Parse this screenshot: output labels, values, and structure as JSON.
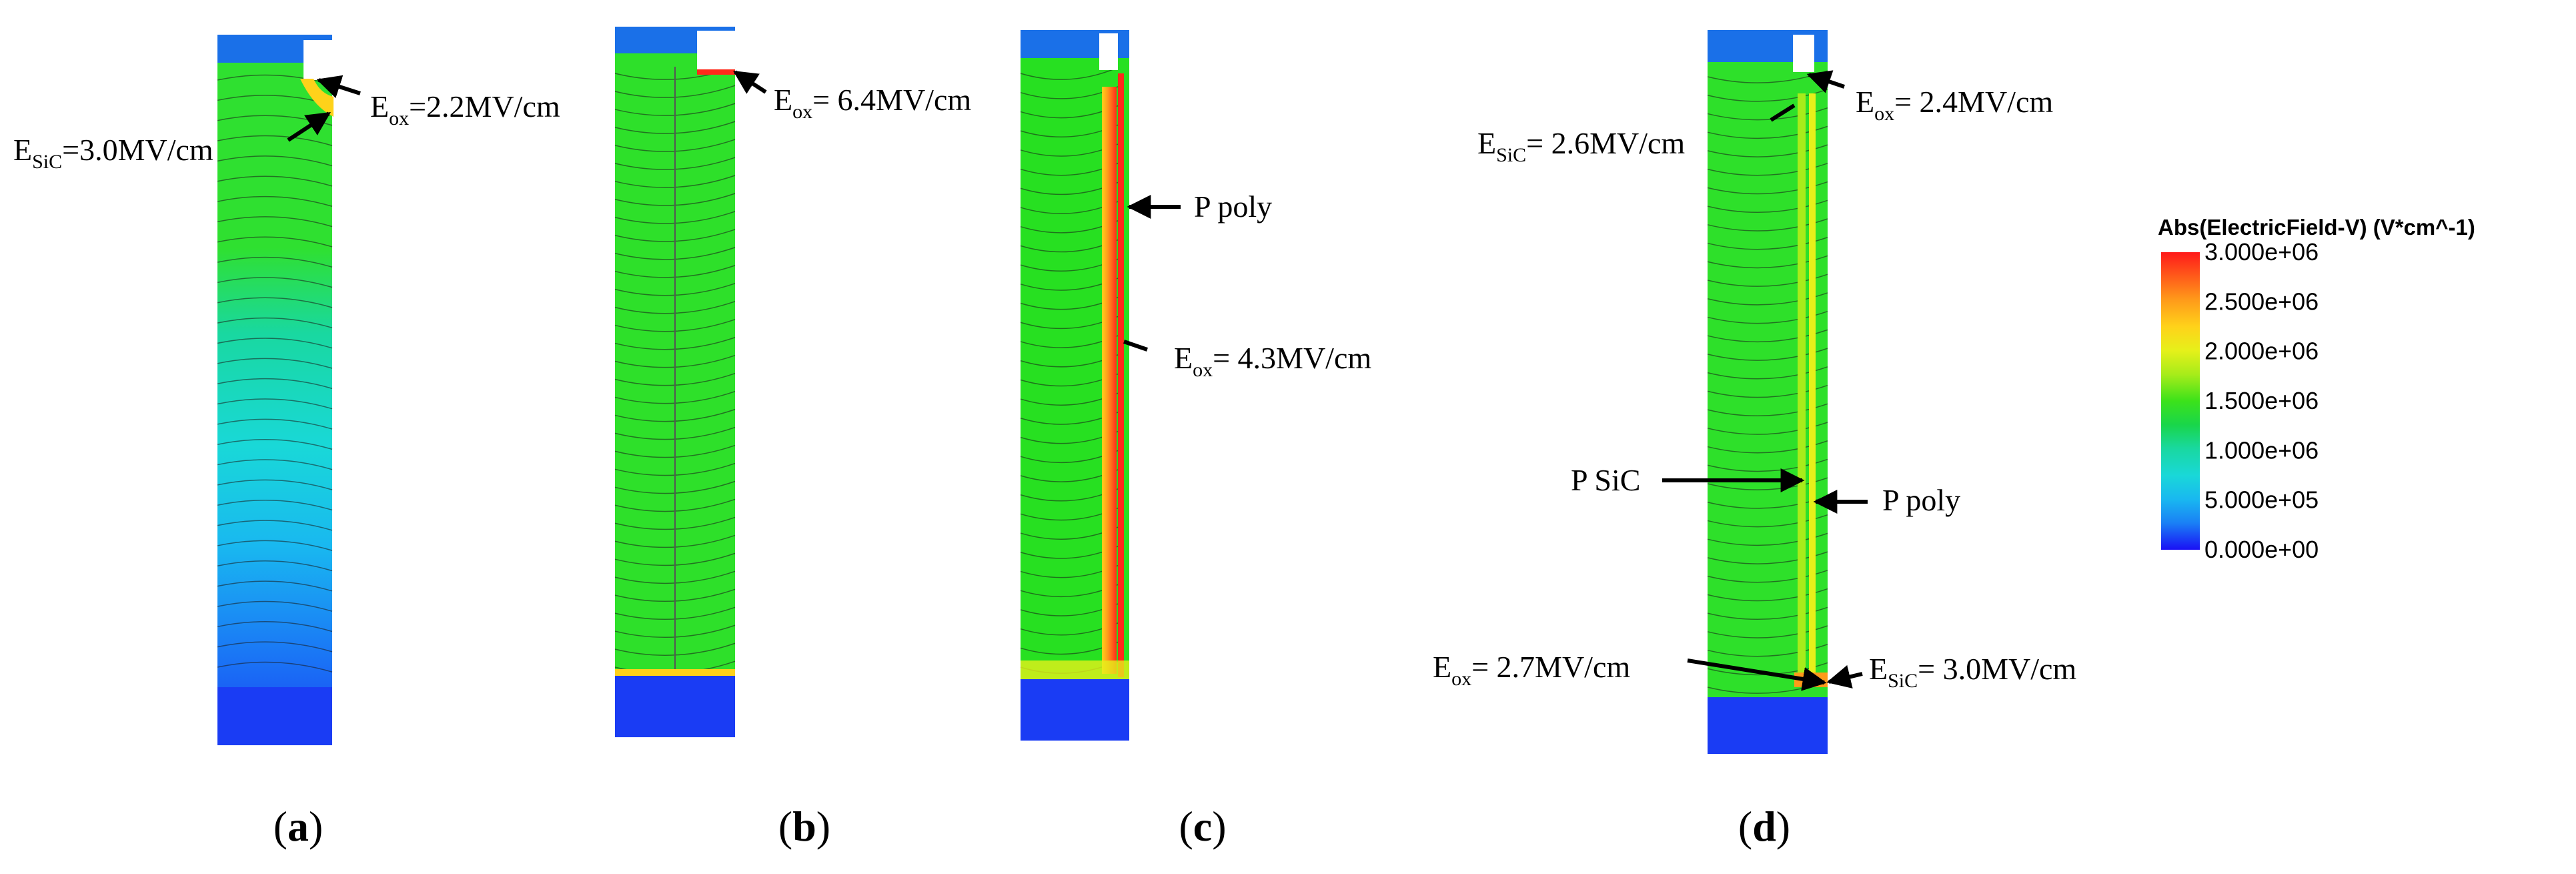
{
  "figure": {
    "panels": [
      {
        "id": "a",
        "caption_open": "(",
        "caption_letter": "a",
        "caption_close": ")",
        "device": "fully-depleted-blue-bottom"
      },
      {
        "id": "b",
        "caption_open": "(",
        "caption_letter": "b",
        "caption_close": ")",
        "device": "green-with-substrate"
      },
      {
        "id": "c",
        "caption_open": "(",
        "caption_letter": "c",
        "caption_close": ")",
        "device": "green-with-p-poly-sidewall"
      },
      {
        "id": "d",
        "caption_open": "(",
        "caption_letter": "d",
        "caption_close": ")",
        "device": "green-with-p-sic-and-p-poly"
      }
    ],
    "annotations": {
      "a_eox": {
        "main": "E",
        "sub": "ox",
        "rest": "=2.2MV/cm"
      },
      "a_esic": {
        "main": "E",
        "sub": "SiC",
        "rest": "=3.0MV/cm"
      },
      "b_eox": {
        "main": "E",
        "sub": "ox",
        "rest": "= 6.4MV/cm"
      },
      "c_ppoly": "P poly",
      "c_eox": {
        "main": "E",
        "sub": "ox",
        "rest": "= 4.3MV/cm"
      },
      "d_esic_top": {
        "main": "E",
        "sub": "SiC",
        "rest": "= 2.6MV/cm"
      },
      "d_eox_top": {
        "main": "E",
        "sub": "ox",
        "rest": "= 2.4MV/cm"
      },
      "d_psic": "P SiC",
      "d_ppoly": "P poly",
      "d_eox_bottom": {
        "main": "E",
        "sub": "ox",
        "rest": "= 2.7MV/cm"
      },
      "d_esic_bottom": {
        "main": "E",
        "sub": "SiC",
        "rest": "= 3.0MV/cm"
      }
    }
  },
  "legend": {
    "title": "Abs(ElectricField-V) (V*cm^-1)",
    "ticks": [
      "3.000e+06",
      "2.500e+06",
      "2.000e+06",
      "1.500e+06",
      "1.000e+06",
      "5.000e+05",
      "0.000e+00"
    ],
    "colors": [
      "#ff1a1a",
      "#ff5a1a",
      "#ff9a1a",
      "#ffd21a",
      "#e6f01a",
      "#a8ec1a",
      "#3ce21a",
      "#19d64a",
      "#19d8a0",
      "#19d8d8",
      "#19b8f0",
      "#1a80f5",
      "#1a40f5",
      "#1a10f5"
    ]
  },
  "colors": {
    "depleted_green": "#2ee02a",
    "bright_green": "#27e021",
    "hot_red": "#ff2a1a",
    "orange": "#ff9a1a",
    "yellow": "#f3f01a",
    "substrate_blue": "#1a3cf4",
    "top_blue": "#1a70e8",
    "cyan": "#19c8e8",
    "line": "#000000"
  }
}
